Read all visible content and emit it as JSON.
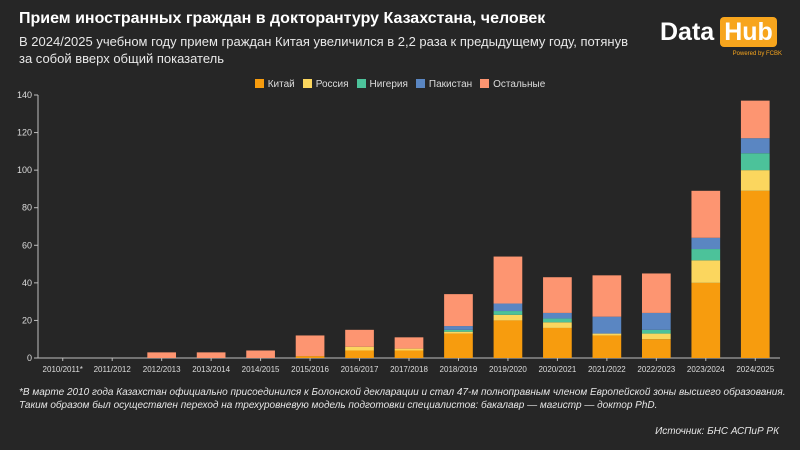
{
  "header": {
    "title": "Прием иностранных граждан в докторантуру Казахстана, человек",
    "subtitle": "В 2024/2025 учебном году прием граждан Китая увеличился в 2,2 раза к предыдущему году, потянув за собой вверх общий показатель"
  },
  "logo": {
    "word1": "Data",
    "word2": "Hub",
    "tagline": "Powered by FCBK"
  },
  "footnote": "*В марте 2010 года Казахстан официально присоединился к Болонской декларации и стал 47-м полноправным членом Европейской зоны высшего образования. Таким образом был осуществлен переход на трехуровневую модель подготовки специалистов: бакалавр — магистр — доктор PhD.",
  "source": "Источник: БНС АСПиР РК",
  "chart_data": {
    "type": "bar",
    "stacked": true,
    "categories": [
      "2010/2011*",
      "2011/2012",
      "2012/2013",
      "2013/2014",
      "2014/2015",
      "2015/2016",
      "2016/2017",
      "2017/2018",
      "2018/2019",
      "2019/2020",
      "2020/2021",
      "2021/2022",
      "2022/2023",
      "2023/2024",
      "2024/2025"
    ],
    "series": [
      {
        "name": "Китай",
        "color": "#f79c0e",
        "values": [
          0,
          0,
          0,
          0,
          0,
          1,
          4,
          4,
          13,
          20,
          16,
          12,
          10,
          40,
          89
        ]
      },
      {
        "name": "Россия",
        "color": "#fbd65e",
        "values": [
          0,
          0,
          0,
          0,
          0,
          0,
          2,
          1,
          1,
          3,
          3,
          1,
          3,
          12,
          11
        ]
      },
      {
        "name": "Нигерия",
        "color": "#4cc29a",
        "values": [
          0,
          0,
          0,
          0,
          0,
          0,
          0,
          0,
          1,
          2,
          2,
          0,
          2,
          6,
          9
        ]
      },
      {
        "name": "Пакистан",
        "color": "#5a86c2",
        "values": [
          0,
          0,
          0,
          0,
          0,
          0,
          0,
          0,
          2,
          4,
          3,
          9,
          9,
          6,
          8
        ]
      },
      {
        "name": "Остальные",
        "color": "#fd9571",
        "values": [
          0,
          0,
          3,
          3,
          4,
          11,
          9,
          6,
          17,
          25,
          19,
          22,
          21,
          25,
          20
        ]
      }
    ],
    "ylim": [
      0,
      140
    ],
    "yticks": [
      0,
      20,
      40,
      60,
      80,
      100,
      120,
      140
    ],
    "grid": false,
    "legend_position": "top"
  }
}
